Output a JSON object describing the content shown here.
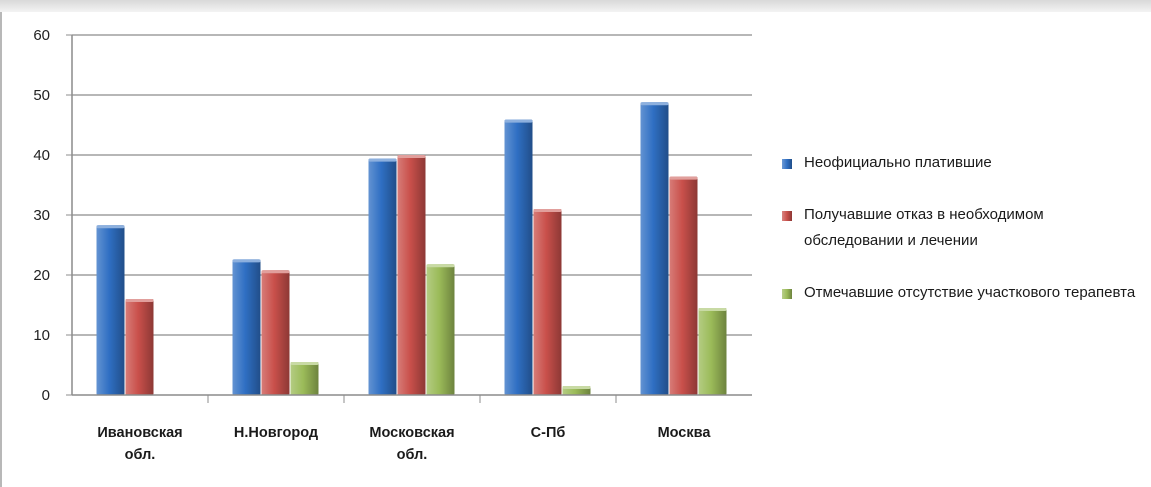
{
  "chart_data": {
    "type": "bar",
    "categories": [
      [
        "Ивановская",
        "обл."
      ],
      [
        "Н.Новгород"
      ],
      [
        "Московская",
        "обл."
      ],
      [
        "С-Пб"
      ],
      [
        "Москва"
      ]
    ],
    "series": [
      {
        "name": "Неофициально платившие",
        "color": "#2F6FC3",
        "values": [
          28.3,
          22.6,
          39.4,
          45.9,
          48.8
        ]
      },
      {
        "name": "Получавшие отказ в необходимом обследовании и лечении",
        "color": "#C9504B",
        "values": [
          16.0,
          20.8,
          40.0,
          31.0,
          36.4
        ]
      },
      {
        "name": "Отмечавшие отсутствие участкового терапевта",
        "color": "#9BBB59",
        "values": [
          0,
          5.5,
          21.8,
          1.5,
          14.5
        ]
      }
    ],
    "ylim": [
      0,
      60
    ],
    "yticks": [
      0,
      10,
      20,
      30,
      40,
      50,
      60
    ],
    "grid": true,
    "legend_position": "right"
  }
}
